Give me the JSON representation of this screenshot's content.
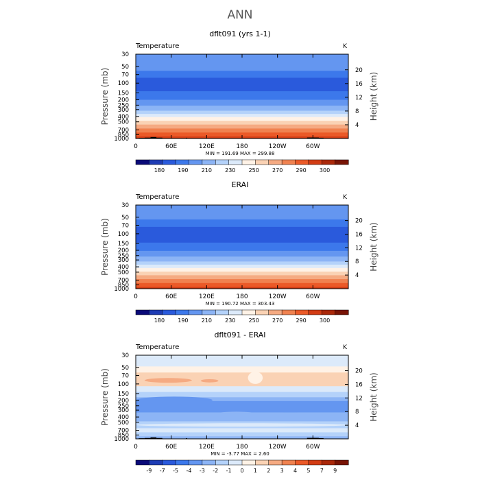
{
  "figure": {
    "title": "ANN"
  },
  "chart_data": [
    {
      "type": "heatmap",
      "title": "dflt091 (yrs 1-1)",
      "field_label": "Temperature",
      "units_label": "K",
      "ylabel": "Pressure (mb)",
      "y2label": "Height (km)",
      "x_ticks": [
        "0",
        "60E",
        "120E",
        "180",
        "120W",
        "60W"
      ],
      "x_range": [
        0,
        360
      ],
      "pressure_ticks": [
        "30",
        "50",
        "70",
        "100",
        "150",
        "200",
        "250",
        "300",
        "400",
        "500",
        "700",
        "850",
        "1000"
      ],
      "height_ticks": [
        "20",
        "16",
        "12",
        "8",
        "4"
      ],
      "stats": "MIN = 191.69   MAX = 299.88",
      "colorbar_labels": [
        "180",
        "190",
        "210",
        "230",
        "250",
        "270",
        "290",
        "300"
      ],
      "colorbar_colors": [
        "#0a0a78",
        "#1e3cb4",
        "#2a5adc",
        "#3c78eb",
        "#6496f0",
        "#8cb4f5",
        "#b4d2fa",
        "#dceafa",
        "#fff2e6",
        "#fad2b4",
        "#f5aa82",
        "#f08250",
        "#eb5a28",
        "#d23c14",
        "#aa280a",
        "#781405"
      ],
      "bands": [
        {
          "p": 30,
          "color": "#6496f0"
        },
        {
          "p": 60,
          "color": "#3c78eb"
        },
        {
          "p": 80,
          "color": "#2a5adc"
        },
        {
          "p": 140,
          "color": "#3c78eb"
        },
        {
          "p": 200,
          "color": "#6496f0"
        },
        {
          "p": 255,
          "color": "#8cb4f5"
        },
        {
          "p": 315,
          "color": "#b4d2fa"
        },
        {
          "p": 360,
          "color": "#dceafa"
        },
        {
          "p": 410,
          "color": "#fff2e6"
        },
        {
          "p": 480,
          "color": "#fad2b4"
        },
        {
          "p": 560,
          "color": "#f5aa82"
        },
        {
          "p": 660,
          "color": "#f08250"
        },
        {
          "p": 780,
          "color": "#eb5a28"
        },
        {
          "p": 920,
          "color": "#d23c14"
        },
        {
          "p": 980,
          "color": "#aa280a"
        }
      ],
      "terrain": [
        {
          "lon": [
            5,
            15
          ],
          "p": 975
        },
        {
          "lon": [
            15,
            25
          ],
          "p": 965
        },
        {
          "lon": [
            25,
            35
          ],
          "p": 940
        },
        {
          "lon": [
            35,
            45
          ],
          "p": 965
        },
        {
          "lon": [
            60,
            62
          ],
          "p": 985
        },
        {
          "lon": [
            85,
            87
          ],
          "p": 970
        },
        {
          "lon": [
            290,
            310
          ],
          "p": 960
        },
        {
          "lon": [
            310,
            318
          ],
          "p": 970
        }
      ]
    },
    {
      "type": "heatmap",
      "title": "ERAI",
      "field_label": "Temperature",
      "units_label": "K",
      "ylabel": "Pressure (mb)",
      "y2label": "Height (km)",
      "x_ticks": [
        "0",
        "60E",
        "120E",
        "180",
        "120W",
        "60W"
      ],
      "x_range": [
        0,
        360
      ],
      "pressure_ticks": [
        "30",
        "50",
        "70",
        "100",
        "150",
        "200",
        "250",
        "300",
        "400",
        "500",
        "700",
        "850",
        "1000"
      ],
      "height_ticks": [
        "20",
        "16",
        "12",
        "8",
        "4"
      ],
      "stats": "MIN = 190.72   MAX = 303.43",
      "colorbar_labels": [
        "180",
        "190",
        "210",
        "230",
        "250",
        "270",
        "290",
        "300"
      ],
      "colorbar_colors": [
        "#0a0a78",
        "#1e3cb4",
        "#2a5adc",
        "#3c78eb",
        "#6496f0",
        "#8cb4f5",
        "#b4d2fa",
        "#dceafa",
        "#fff2e6",
        "#fad2b4",
        "#f5aa82",
        "#f08250",
        "#eb5a28",
        "#d23c14",
        "#aa280a",
        "#781405"
      ],
      "bands": [
        {
          "p": 30,
          "color": "#6496f0"
        },
        {
          "p": 55,
          "color": "#3c78eb"
        },
        {
          "p": 75,
          "color": "#2a5adc"
        },
        {
          "p": 145,
          "color": "#3c78eb"
        },
        {
          "p": 205,
          "color": "#6496f0"
        },
        {
          "p": 260,
          "color": "#8cb4f5"
        },
        {
          "p": 320,
          "color": "#b4d2fa"
        },
        {
          "p": 365,
          "color": "#dceafa"
        },
        {
          "p": 420,
          "color": "#fff2e6"
        },
        {
          "p": 490,
          "color": "#fad2b4"
        },
        {
          "p": 570,
          "color": "#f5aa82"
        },
        {
          "p": 670,
          "color": "#f08250"
        },
        {
          "p": 790,
          "color": "#eb5a28"
        },
        {
          "p": 930,
          "color": "#d23c14"
        }
      ],
      "terrain": []
    },
    {
      "type": "heatmap",
      "title": "dflt091 - ERAI",
      "field_label": "Temperature",
      "units_label": "K",
      "ylabel": "Pressure (mb)",
      "y2label": "Height (km)",
      "x_ticks": [
        "0",
        "60E",
        "120E",
        "180",
        "120W",
        "60W"
      ],
      "x_range": [
        0,
        360
      ],
      "pressure_ticks": [
        "30",
        "50",
        "70",
        "100",
        "150",
        "200",
        "250",
        "300",
        "400",
        "500",
        "700",
        "850",
        "1000"
      ],
      "height_ticks": [
        "20",
        "16",
        "12",
        "8",
        "4"
      ],
      "stats": "MIN =   -3.77   MAX =    2.60",
      "colorbar_labels": [
        "-9",
        "-7",
        "-5",
        "-4",
        "-3",
        "-2",
        "-1",
        "0",
        "1",
        "2",
        "3",
        "4",
        "5",
        "7",
        "9"
      ],
      "colorbar_colors": [
        "#0a0a78",
        "#1e3cb4",
        "#2a5adc",
        "#3c78eb",
        "#6496f0",
        "#8cb4f5",
        "#b4d2fa",
        "#dceafa",
        "#fff2e6",
        "#fad2b4",
        "#f5aa82",
        "#f08250",
        "#eb5a28",
        "#d23c14",
        "#aa280a",
        "#781405"
      ],
      "bands": [
        {
          "p": 30,
          "color": "#dceafa"
        },
        {
          "p": 48,
          "color": "#fff2e6"
        },
        {
          "p": 62,
          "color": "#fad2b4"
        },
        {
          "p": 110,
          "color": "#dceafa"
        },
        {
          "p": 140,
          "color": "#b4d2fa"
        },
        {
          "p": 175,
          "color": "#8cb4f5"
        },
        {
          "p": 205,
          "color": "#6496f0"
        },
        {
          "p": 330,
          "color": "#8cb4f5"
        },
        {
          "p": 480,
          "color": "#b4d2fa"
        },
        {
          "p": 640,
          "color": "#dceafa"
        },
        {
          "p": 760,
          "color": "#b4d2fa"
        },
        {
          "p": 900,
          "color": "#8cb4f5"
        }
      ],
      "blobs": [
        {
          "lon": [
            15,
            95
          ],
          "p": [
            78,
            95
          ],
          "color": "#f5aa82"
        },
        {
          "lon": [
            110,
            140
          ],
          "p": [
            82,
            94
          ],
          "color": "#f5aa82"
        },
        {
          "lon": [
            190,
            215
          ],
          "p": [
            60,
            100
          ],
          "color": "#fff2e6"
        },
        {
          "lon": [
            0,
            130
          ],
          "p": [
            170,
            230
          ],
          "color": "#6496f0"
        },
        {
          "lon": [
            220,
            300
          ],
          "p": [
            230,
            330
          ],
          "color": "#6496f0"
        },
        {
          "lon": [
            130,
            210
          ],
          "p": [
            320,
            420
          ],
          "color": "#8cb4f5"
        },
        {
          "lon": [
            0,
            360
          ],
          "p": [
            520,
            600
          ],
          "color": "#dceafa"
        },
        {
          "lon": [
            30,
            120
          ],
          "p": [
            680,
            760
          ],
          "color": "#dceafa"
        }
      ],
      "terrain": [
        {
          "lon": [
            5,
            15
          ],
          "p": 975
        },
        {
          "lon": [
            15,
            25
          ],
          "p": 965
        },
        {
          "lon": [
            25,
            35
          ],
          "p": 940
        },
        {
          "lon": [
            35,
            45
          ],
          "p": 965
        },
        {
          "lon": [
            85,
            87
          ],
          "p": 970
        },
        {
          "lon": [
            290,
            310
          ],
          "p": 960
        },
        {
          "lon": [
            310,
            318
          ],
          "p": 970
        }
      ]
    }
  ]
}
